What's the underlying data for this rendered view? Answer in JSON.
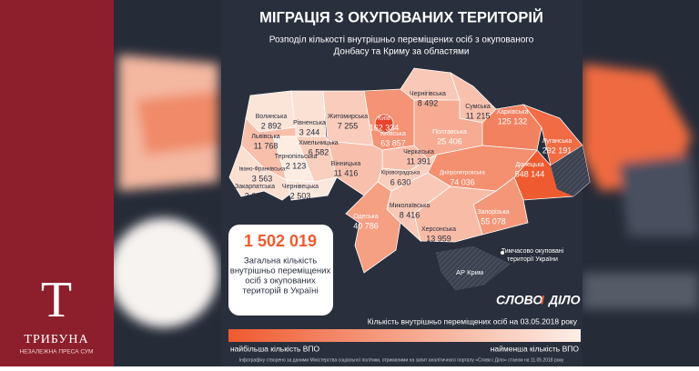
{
  "header": {
    "title": "МІГРАЦІЯ З ОКУПОВАНИХ ТЕРИТОРІЙ",
    "subtitle": [
      "Розподіл кількості внутрішньо переміщених осіб з окупованого",
      "Донбасу та Криму за областями"
    ]
  },
  "regions": [
    {
      "name": "Волинська",
      "value": 2892,
      "label": "2 892"
    },
    {
      "name": "Рівненська",
      "value": 3244,
      "label": "3 244"
    },
    {
      "name": "Житомирська",
      "value": 7255,
      "label": "7 255"
    },
    {
      "name": "Київська",
      "value": 63857,
      "label": "63 857"
    },
    {
      "name": "Чернігівська",
      "value": 8492,
      "label": "8 492"
    },
    {
      "name": "Сумська",
      "value": 11215,
      "label": "11 215"
    },
    {
      "name": "Львівська",
      "value": 11768,
      "label": "11 768"
    },
    {
      "name": "Хмельницька",
      "value": 6582,
      "label": "6 582"
    },
    {
      "name": "Полтавська",
      "value": 25406,
      "label": "25 406"
    },
    {
      "name": "Харківська",
      "value": 125132,
      "label": "125 132"
    },
    {
      "name": "Луганська",
      "value": 292191,
      "label": "292 191"
    },
    {
      "name": "Тернопільська",
      "value": 2123,
      "label": "2 123"
    },
    {
      "name": "Черкаська",
      "value": 11391,
      "label": "11 391"
    },
    {
      "name": "Донецька",
      "value": 548144,
      "label": "548 144"
    },
    {
      "name": "Івано-Франківська",
      "value": 3563,
      "label": "3 563"
    },
    {
      "name": "Закарпатська",
      "value": 3606,
      "label": "3 606"
    },
    {
      "name": "Чернівецька",
      "value": 2503,
      "label": "2 503"
    },
    {
      "name": "Вінницька",
      "value": 11416,
      "label": "11 416"
    },
    {
      "name": "Кіровоградська",
      "value": 6630,
      "label": "6 630"
    },
    {
      "name": "Дніпропетровська",
      "value": 74036,
      "label": "74 036"
    },
    {
      "name": "Миколаївська",
      "value": 8416,
      "label": "8 416"
    },
    {
      "name": "Одеська",
      "value": 40786,
      "label": "40 786"
    },
    {
      "name": "Запорізька",
      "value": 55078,
      "label": "55 078"
    },
    {
      "name": "Херсонська",
      "value": 13959,
      "label": "13 959"
    },
    {
      "name": "Київ",
      "value": 162334,
      "label": "162 334"
    }
  ],
  "crimea": "АР Крим",
  "occupied_legend": [
    "Тимчасово окуповані",
    "території України"
  ],
  "total": {
    "value": 1502019,
    "label": "1 502 019",
    "text": [
      "Загальна кількість",
      "внутрішньо переміщених",
      "осіб з окупованих",
      "територій в Україні"
    ]
  },
  "brand": [
    "СЛОВО",
    "І",
    "ДІЛО"
  ],
  "legend": {
    "caption": "Кількість внутрішньо переміщених осіб на 03.05.2018 року",
    "high": "найбільша кількість ВПО",
    "low": "найменша кількість ВПО"
  },
  "footnote": "Інфографіку створено за даними Міністерства соціальної політики, отриманими на запит аналітичного порталу «Слово і Діло» станом на 11.05.2018 року",
  "logo": {
    "letter": "Т",
    "name": "ТРИБУНА",
    "tagline": "НЕЗАЛЕЖНА ПРЕСА СУМ"
  }
}
